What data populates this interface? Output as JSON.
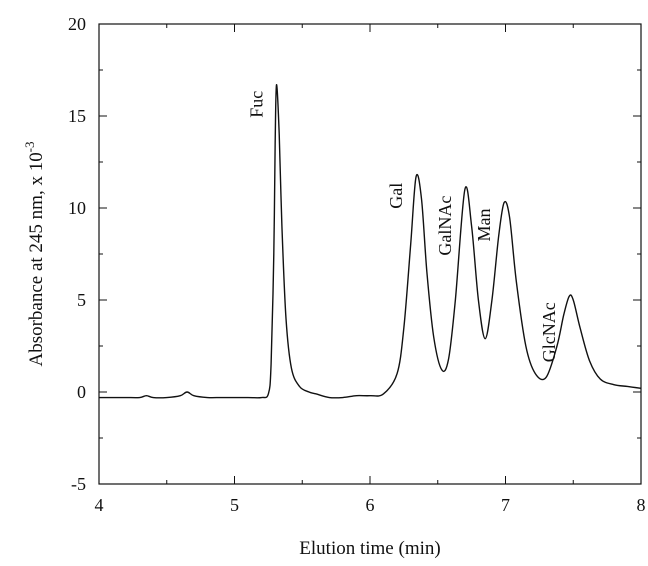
{
  "chart_data": {
    "type": "line",
    "title": "",
    "xlabel": "Elution time (min)",
    "ylabel": "Absorbance at 245 nm, x 10",
    "ylabel_exponent": "-3",
    "xlim": [
      4,
      8
    ],
    "ylim": [
      -5,
      20
    ],
    "x_major_ticks": [
      "4",
      "5",
      "6",
      "7",
      "8"
    ],
    "y_major_ticks": [
      "-5",
      "0",
      "5",
      "10",
      "15",
      "20"
    ],
    "grid": false,
    "line_color": "#111111",
    "series": [
      {
        "x": [
          4.0,
          4.1,
          4.2,
          4.3,
          4.35,
          4.4,
          4.5,
          4.6,
          4.65,
          4.7,
          4.8,
          4.9,
          5.0,
          5.1,
          5.2,
          5.25,
          5.27,
          5.29,
          5.3,
          5.31,
          5.33,
          5.35,
          5.38,
          5.42,
          5.48,
          5.55,
          5.6,
          5.7,
          5.8,
          5.9,
          6.0,
          6.1,
          6.2,
          6.25,
          6.3,
          6.34,
          6.38,
          6.42,
          6.47,
          6.53,
          6.58,
          6.63,
          6.7,
          6.75,
          6.8,
          6.85,
          6.9,
          6.95,
          6.99,
          7.03,
          7.08,
          7.15,
          7.22,
          7.3,
          7.38,
          7.43,
          7.47,
          7.5,
          7.55,
          7.62,
          7.7,
          7.8,
          7.9,
          8.0
        ],
        "y": [
          -0.3,
          -0.3,
          -0.3,
          -0.3,
          -0.2,
          -0.3,
          -0.3,
          -0.2,
          0.0,
          -0.2,
          -0.3,
          -0.3,
          -0.3,
          -0.3,
          -0.3,
          -0.1,
          1.5,
          7.5,
          13.5,
          16.7,
          14.0,
          9.0,
          4.0,
          1.3,
          0.3,
          0.0,
          -0.1,
          -0.3,
          -0.3,
          -0.2,
          -0.2,
          -0.1,
          1.0,
          3.5,
          8.0,
          11.7,
          10.5,
          6.5,
          3.0,
          1.2,
          1.8,
          5.0,
          11.0,
          9.0,
          5.0,
          2.9,
          5.0,
          8.5,
          10.3,
          9.5,
          6.0,
          2.5,
          1.0,
          0.8,
          2.5,
          4.2,
          5.2,
          5.0,
          3.5,
          1.7,
          0.7,
          0.4,
          0.3,
          0.2
        ]
      }
    ],
    "annotations": [
      {
        "text": "Fuc",
        "x": 5.31,
        "y": 16.7
      },
      {
        "text": "Gal",
        "x": 6.34,
        "y": 11.7
      },
      {
        "text": "GalNAc",
        "x": 6.7,
        "y": 11.0
      },
      {
        "text": "Man",
        "x": 6.99,
        "y": 10.3
      },
      {
        "text": "GlcNAc",
        "x": 7.47,
        "y": 5.2
      }
    ]
  }
}
